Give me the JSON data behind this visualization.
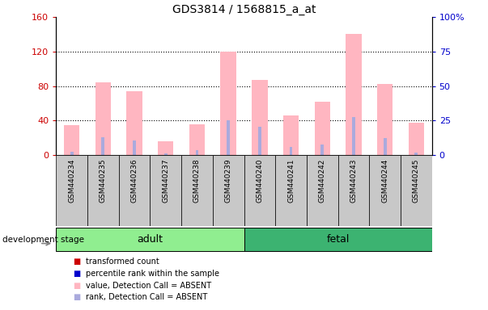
{
  "title": "GDS3814 / 1568815_a_at",
  "samples": [
    "GSM440234",
    "GSM440235",
    "GSM440236",
    "GSM440237",
    "GSM440238",
    "GSM440239",
    "GSM440240",
    "GSM440241",
    "GSM440242",
    "GSM440243",
    "GSM440244",
    "GSM440245"
  ],
  "pink_bars": [
    35,
    84,
    74,
    16,
    36,
    120,
    87,
    46,
    62,
    140,
    82,
    37
  ],
  "blue_bars": [
    4,
    21,
    17,
    2,
    6,
    40,
    33,
    9,
    12,
    44,
    20,
    3
  ],
  "left_ylim": [
    0,
    160
  ],
  "right_ylim": [
    0,
    100
  ],
  "left_yticks": [
    0,
    40,
    80,
    120,
    160
  ],
  "right_yticks": [
    0,
    25,
    50,
    75,
    100
  ],
  "left_yticklabels": [
    "0",
    "40",
    "80",
    "120",
    "160"
  ],
  "right_yticklabels": [
    "0",
    "25",
    "50",
    "75",
    "100%"
  ],
  "adult_samples": 6,
  "fetal_samples": 6,
  "adult_label": "adult",
  "fetal_label": "fetal",
  "stage_label": "development stage",
  "adult_color": "#90EE90",
  "fetal_color": "#3CB371",
  "pink_color": "#FFB6C1",
  "blue_color": "#AAAADD",
  "left_tick_color": "#CC0000",
  "right_tick_color": "#0000CC",
  "bg_color": "#FFFFFF",
  "xticklabel_bg": "#C8C8C8",
  "bar_width": 0.5,
  "blue_bar_width": 0.1,
  "legend_items": [
    {
      "color": "#CC0000",
      "label": "transformed count"
    },
    {
      "color": "#0000CC",
      "label": "percentile rank within the sample"
    },
    {
      "color": "#FFB6C1",
      "label": "value, Detection Call = ABSENT"
    },
    {
      "color": "#AAAADD",
      "label": "rank, Detection Call = ABSENT"
    }
  ]
}
